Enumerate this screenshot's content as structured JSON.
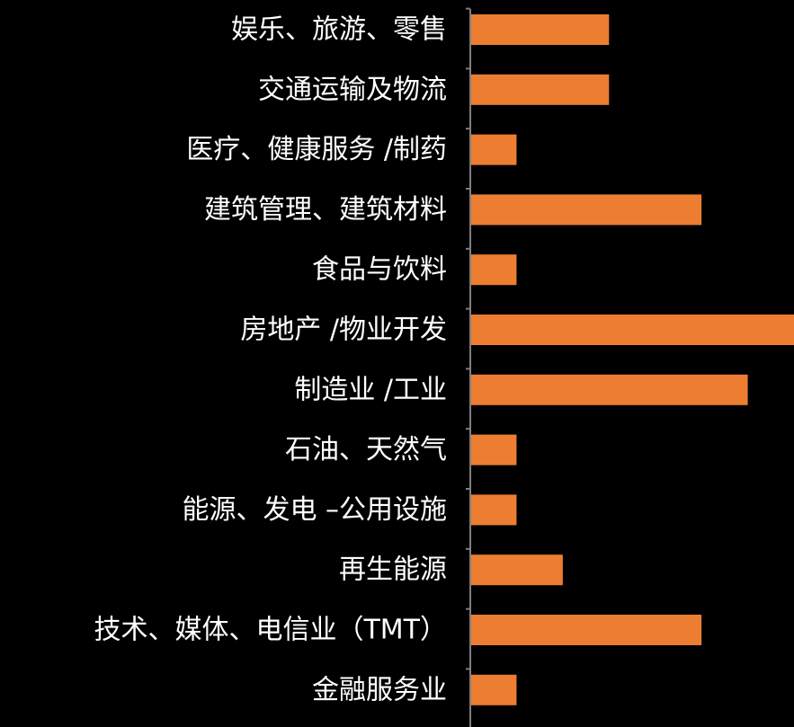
{
  "chart_data": {
    "type": "bar",
    "orientation": "horizontal",
    "categories": [
      "娱乐、旅游、零售",
      "交通运输及物流",
      "医疗、健康服务 /制药",
      "建筑管理、建筑材料",
      "食品与饮料",
      "房地产 /物业开发",
      "制造业 /工业",
      "石油、天然气",
      "能源、发电 –公用设施",
      "再生能源",
      "技术、媒体、电信业（TMT）",
      "金融服务业"
    ],
    "values": [
      3,
      3,
      1,
      5,
      1,
      7,
      6,
      1,
      1,
      2,
      5,
      1
    ],
    "xlim": [
      0,
      7
    ],
    "bar_color": "#ED7D31",
    "axis_color": "#7F7F7F",
    "background": "#000000",
    "title": "",
    "xlabel": "",
    "ylabel": "",
    "grid": false,
    "legend": "none"
  }
}
